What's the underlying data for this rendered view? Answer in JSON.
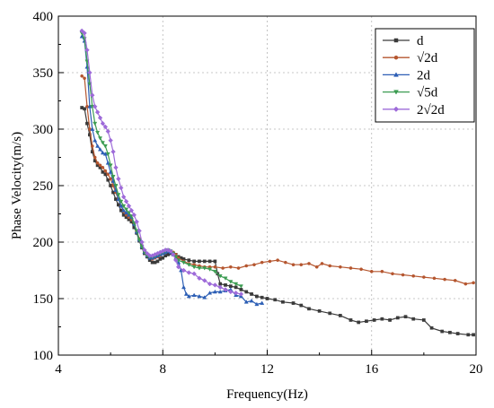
{
  "chart_data": {
    "type": "line",
    "xlabel": "Frequency(Hz)",
    "ylabel": "Phase Velocity(m/s)",
    "xlim": [
      4,
      20
    ],
    "ylim": [
      100,
      400
    ],
    "xticks": [
      4,
      8,
      12,
      16,
      20
    ],
    "yticks": [
      100,
      150,
      200,
      250,
      300,
      350,
      400
    ],
    "x_minor_ticks": [
      6,
      10,
      14,
      18
    ],
    "y_minor_ticks": [
      125,
      175,
      225,
      275,
      325,
      375
    ],
    "grid": true,
    "legend_position": "top-right",
    "series": [
      {
        "name": "d",
        "color": "#3a3a3a",
        "marker": "square",
        "points": [
          [
            4.9,
            319
          ],
          [
            5.0,
            318
          ],
          [
            5.1,
            305
          ],
          [
            5.2,
            295
          ],
          [
            5.3,
            280
          ],
          [
            5.4,
            272
          ],
          [
            5.5,
            268
          ],
          [
            5.6,
            266
          ],
          [
            5.7,
            262
          ],
          [
            5.8,
            260
          ],
          [
            5.9,
            255
          ],
          [
            6.0,
            250
          ],
          [
            6.1,
            244
          ],
          [
            6.2,
            238
          ],
          [
            6.3,
            233
          ],
          [
            6.4,
            228
          ],
          [
            6.5,
            224
          ],
          [
            6.6,
            222
          ],
          [
            6.7,
            220
          ],
          [
            6.8,
            218
          ],
          [
            6.9,
            213
          ],
          [
            7.0,
            208
          ],
          [
            7.1,
            201
          ],
          [
            7.2,
            195
          ],
          [
            7.3,
            190
          ],
          [
            7.4,
            187
          ],
          [
            7.5,
            184
          ],
          [
            7.6,
            182
          ],
          [
            7.7,
            182
          ],
          [
            7.8,
            183
          ],
          [
            7.9,
            185
          ],
          [
            8.0,
            186
          ],
          [
            8.1,
            188
          ],
          [
            8.2,
            189
          ],
          [
            8.3,
            190
          ],
          [
            8.4,
            190
          ],
          [
            8.5,
            189
          ],
          [
            8.6,
            187
          ],
          [
            8.7,
            186
          ],
          [
            8.8,
            185
          ],
          [
            9.0,
            184
          ],
          [
            9.2,
            183
          ],
          [
            9.4,
            183
          ],
          [
            9.6,
            183
          ],
          [
            9.8,
            183
          ],
          [
            10.0,
            183
          ],
          [
            10.1,
            172
          ],
          [
            10.2,
            163
          ],
          [
            10.4,
            162
          ],
          [
            10.6,
            161
          ],
          [
            10.8,
            160
          ],
          [
            11.0,
            158
          ],
          [
            11.2,
            156
          ],
          [
            11.4,
            154
          ],
          [
            11.6,
            152
          ],
          [
            11.8,
            151
          ],
          [
            12.0,
            150
          ],
          [
            12.3,
            149
          ],
          [
            12.6,
            147
          ],
          [
            13.0,
            146
          ],
          [
            13.3,
            144
          ],
          [
            13.6,
            141
          ],
          [
            14.0,
            139
          ],
          [
            14.4,
            137
          ],
          [
            14.8,
            135
          ],
          [
            15.2,
            131
          ],
          [
            15.5,
            129
          ],
          [
            15.8,
            130
          ],
          [
            16.1,
            131
          ],
          [
            16.4,
            132
          ],
          [
            16.7,
            131
          ],
          [
            17.0,
            133
          ],
          [
            17.3,
            134
          ],
          [
            17.6,
            132
          ],
          [
            18.0,
            131
          ],
          [
            18.3,
            124
          ],
          [
            18.7,
            121
          ],
          [
            19.0,
            120
          ],
          [
            19.3,
            119
          ],
          [
            19.7,
            118
          ],
          [
            19.9,
            118
          ]
        ]
      },
      {
        "name": "√2d",
        "color": "#b5562f",
        "marker": "circle",
        "points": [
          [
            4.9,
            347
          ],
          [
            5.0,
            345
          ],
          [
            5.1,
            320
          ],
          [
            5.2,
            300
          ],
          [
            5.3,
            285
          ],
          [
            5.4,
            275
          ],
          [
            5.5,
            270
          ],
          [
            5.6,
            268
          ],
          [
            5.7,
            266
          ],
          [
            5.8,
            263
          ],
          [
            5.9,
            260
          ],
          [
            6.0,
            256
          ],
          [
            6.1,
            250
          ],
          [
            6.2,
            244
          ],
          [
            6.3,
            238
          ],
          [
            6.4,
            232
          ],
          [
            6.5,
            227
          ],
          [
            6.6,
            224
          ],
          [
            6.7,
            222
          ],
          [
            6.8,
            220
          ],
          [
            6.9,
            216
          ],
          [
            7.0,
            210
          ],
          [
            7.1,
            203
          ],
          [
            7.2,
            197
          ],
          [
            7.3,
            192
          ],
          [
            7.4,
            188
          ],
          [
            7.5,
            186
          ],
          [
            7.6,
            185
          ],
          [
            7.7,
            186
          ],
          [
            7.8,
            187
          ],
          [
            7.9,
            188
          ],
          [
            8.0,
            190
          ],
          [
            8.1,
            191
          ],
          [
            8.2,
            192
          ],
          [
            8.3,
            192
          ],
          [
            8.4,
            191
          ],
          [
            8.5,
            189
          ],
          [
            8.6,
            186
          ],
          [
            8.8,
            183
          ],
          [
            9.0,
            181
          ],
          [
            9.2,
            180
          ],
          [
            9.4,
            179
          ],
          [
            9.6,
            178
          ],
          [
            9.8,
            178
          ],
          [
            10.0,
            178
          ],
          [
            10.3,
            177
          ],
          [
            10.6,
            178
          ],
          [
            10.9,
            177
          ],
          [
            11.2,
            179
          ],
          [
            11.5,
            180
          ],
          [
            11.8,
            182
          ],
          [
            12.1,
            183
          ],
          [
            12.4,
            184
          ],
          [
            12.7,
            182
          ],
          [
            13.0,
            180
          ],
          [
            13.3,
            180
          ],
          [
            13.6,
            181
          ],
          [
            13.9,
            178
          ],
          [
            14.1,
            181
          ],
          [
            14.4,
            179
          ],
          [
            14.8,
            178
          ],
          [
            15.2,
            177
          ],
          [
            15.6,
            176
          ],
          [
            16.0,
            174
          ],
          [
            16.4,
            174
          ],
          [
            16.8,
            172
          ],
          [
            17.2,
            171
          ],
          [
            17.6,
            170
          ],
          [
            18.0,
            169
          ],
          [
            18.4,
            168
          ],
          [
            18.8,
            167
          ],
          [
            19.2,
            166
          ],
          [
            19.6,
            163
          ],
          [
            19.9,
            164
          ]
        ]
      },
      {
        "name": "2d",
        "color": "#2d5fb5",
        "marker": "triangle",
        "points": [
          [
            4.9,
            382
          ],
          [
            5.0,
            378
          ],
          [
            5.1,
            355
          ],
          [
            5.2,
            320
          ],
          [
            5.3,
            300
          ],
          [
            5.4,
            290
          ],
          [
            5.5,
            285
          ],
          [
            5.6,
            282
          ],
          [
            5.7,
            279
          ],
          [
            5.8,
            278
          ],
          [
            5.9,
            270
          ],
          [
            6.0,
            262
          ],
          [
            6.1,
            254
          ],
          [
            6.2,
            246
          ],
          [
            6.3,
            238
          ],
          [
            6.4,
            232
          ],
          [
            6.5,
            228
          ],
          [
            6.6,
            226
          ],
          [
            6.7,
            224
          ],
          [
            6.8,
            222
          ],
          [
            6.9,
            216
          ],
          [
            7.0,
            209
          ],
          [
            7.1,
            202
          ],
          [
            7.2,
            196
          ],
          [
            7.3,
            191
          ],
          [
            7.4,
            188
          ],
          [
            7.5,
            186
          ],
          [
            7.6,
            186
          ],
          [
            7.7,
            187
          ],
          [
            7.8,
            188
          ],
          [
            7.9,
            189
          ],
          [
            8.0,
            190
          ],
          [
            8.1,
            191
          ],
          [
            8.2,
            192
          ],
          [
            8.3,
            191
          ],
          [
            8.4,
            189
          ],
          [
            8.5,
            186
          ],
          [
            8.6,
            182
          ],
          [
            8.7,
            175
          ],
          [
            8.8,
            160
          ],
          [
            8.9,
            154
          ],
          [
            9.0,
            152
          ],
          [
            9.2,
            153
          ],
          [
            9.4,
            152
          ],
          [
            9.6,
            151
          ],
          [
            9.8,
            155
          ],
          [
            10.0,
            156
          ],
          [
            10.2,
            156
          ],
          [
            10.4,
            157
          ],
          [
            10.6,
            158
          ],
          [
            10.8,
            153
          ],
          [
            11.0,
            152
          ],
          [
            11.2,
            147
          ],
          [
            11.4,
            148
          ],
          [
            11.6,
            145
          ],
          [
            11.8,
            146
          ]
        ]
      },
      {
        "name": "√5d",
        "color": "#3c9c52",
        "marker": "triangle-down",
        "points": [
          [
            4.9,
            385
          ],
          [
            5.0,
            380
          ],
          [
            5.1,
            360
          ],
          [
            5.2,
            340
          ],
          [
            5.3,
            320
          ],
          [
            5.4,
            305
          ],
          [
            5.5,
            297
          ],
          [
            5.6,
            292
          ],
          [
            5.7,
            288
          ],
          [
            5.8,
            285
          ],
          [
            5.9,
            278
          ],
          [
            6.0,
            268
          ],
          [
            6.1,
            258
          ],
          [
            6.2,
            250
          ],
          [
            6.3,
            242
          ],
          [
            6.4,
            236
          ],
          [
            6.5,
            232
          ],
          [
            6.6,
            229
          ],
          [
            6.7,
            226
          ],
          [
            6.8,
            223
          ],
          [
            6.9,
            217
          ],
          [
            7.0,
            210
          ],
          [
            7.1,
            202
          ],
          [
            7.2,
            196
          ],
          [
            7.3,
            191
          ],
          [
            7.4,
            188
          ],
          [
            7.5,
            187
          ],
          [
            7.6,
            187
          ],
          [
            7.7,
            188
          ],
          [
            7.8,
            189
          ],
          [
            7.9,
            190
          ],
          [
            8.0,
            191
          ],
          [
            8.1,
            192
          ],
          [
            8.2,
            193
          ],
          [
            8.3,
            192
          ],
          [
            8.4,
            190
          ],
          [
            8.5,
            187
          ],
          [
            8.6,
            184
          ],
          [
            8.8,
            182
          ],
          [
            9.0,
            180
          ],
          [
            9.2,
            178
          ],
          [
            9.4,
            177
          ],
          [
            9.6,
            177
          ],
          [
            9.8,
            176
          ],
          [
            10.0,
            174
          ],
          [
            10.2,
            170
          ],
          [
            10.4,
            168
          ],
          [
            10.6,
            165
          ],
          [
            10.8,
            163
          ],
          [
            11.0,
            161
          ]
        ]
      },
      {
        "name": "2√2d",
        "color": "#9e6bd9",
        "marker": "diamond",
        "points": [
          [
            4.9,
            387
          ],
          [
            5.0,
            385
          ],
          [
            5.1,
            370
          ],
          [
            5.2,
            350
          ],
          [
            5.3,
            330
          ],
          [
            5.4,
            320
          ],
          [
            5.5,
            315
          ],
          [
            5.6,
            310
          ],
          [
            5.7,
            305
          ],
          [
            5.8,
            302
          ],
          [
            5.9,
            298
          ],
          [
            6.0,
            290
          ],
          [
            6.1,
            280
          ],
          [
            6.2,
            266
          ],
          [
            6.3,
            256
          ],
          [
            6.4,
            248
          ],
          [
            6.5,
            240
          ],
          [
            6.6,
            236
          ],
          [
            6.7,
            232
          ],
          [
            6.8,
            228
          ],
          [
            6.9,
            224
          ],
          [
            7.0,
            218
          ],
          [
            7.1,
            210
          ],
          [
            7.2,
            200
          ],
          [
            7.3,
            193
          ],
          [
            7.4,
            190
          ],
          [
            7.5,
            188
          ],
          [
            7.6,
            188
          ],
          [
            7.7,
            189
          ],
          [
            7.8,
            190
          ],
          [
            7.9,
            191
          ],
          [
            8.0,
            192
          ],
          [
            8.1,
            193
          ],
          [
            8.2,
            193
          ],
          [
            8.3,
            192
          ],
          [
            8.4,
            189
          ],
          [
            8.5,
            184
          ],
          [
            8.6,
            178
          ],
          [
            8.8,
            175
          ],
          [
            9.0,
            173
          ],
          [
            9.2,
            172
          ],
          [
            9.4,
            168
          ],
          [
            9.6,
            166
          ],
          [
            9.8,
            163
          ],
          [
            10.0,
            162
          ],
          [
            10.2,
            160
          ],
          [
            10.4,
            158
          ],
          [
            10.6,
            156
          ],
          [
            10.8,
            155
          ],
          [
            11.0,
            154
          ]
        ]
      }
    ]
  }
}
